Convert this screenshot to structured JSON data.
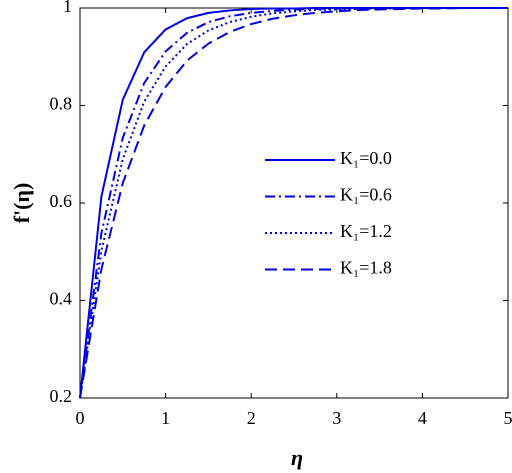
{
  "chart_data": {
    "type": "line",
    "xlabel": "η",
    "ylabel": "f'(η)",
    "x": [
      0,
      0.25,
      0.5,
      0.75,
      1,
      1.25,
      1.5,
      1.75,
      2,
      2.25,
      2.5,
      2.75,
      3,
      3.25,
      3.5,
      3.75,
      4,
      4.25,
      4.5,
      4.75,
      5
    ],
    "series": [
      {
        "name": "K₁=0.0",
        "color": "#0000e6",
        "dash": "solid",
        "values": [
          0.2,
          0.613,
          0.812,
          0.909,
          0.956,
          0.979,
          0.99,
          0.995,
          0.998,
          0.999,
          0.999,
          1,
          1,
          1,
          1,
          1,
          1,
          1,
          1,
          1,
          1
        ]
      },
      {
        "name": "K₁=0.6",
        "color": "#0000e6",
        "dash": "dashdot",
        "values": [
          0.2,
          0.538,
          0.734,
          0.846,
          0.911,
          0.949,
          0.971,
          0.983,
          0.99,
          0.994,
          0.997,
          0.998,
          0.999,
          0.999,
          1,
          1,
          1,
          1,
          1,
          1,
          1
        ]
      },
      {
        "name": "K₁=1.2",
        "color": "#0000e6",
        "dash": "dotted",
        "values": [
          0.2,
          0.502,
          0.69,
          0.808,
          0.88,
          0.926,
          0.954,
          0.971,
          0.982,
          0.989,
          0.993,
          0.996,
          0.997,
          0.998,
          0.999,
          0.999,
          1,
          1,
          1,
          1,
          1
        ]
      },
      {
        "name": "K₁=1.8",
        "color": "#0000e6",
        "dash": "dashed",
        "values": [
          0.2,
          0.464,
          0.641,
          0.759,
          0.838,
          0.892,
          0.927,
          0.951,
          0.967,
          0.978,
          0.985,
          0.99,
          0.993,
          0.996,
          0.997,
          0.998,
          0.999,
          0.999,
          1,
          1,
          1
        ]
      }
    ],
    "xlim": [
      0,
      5
    ],
    "xticks": [
      0,
      1,
      2,
      3,
      4,
      5
    ],
    "ylim": [
      0.2,
      1
    ],
    "yticks": [
      0.2,
      0.4,
      0.6,
      0.8,
      1
    ],
    "grid": false
  }
}
